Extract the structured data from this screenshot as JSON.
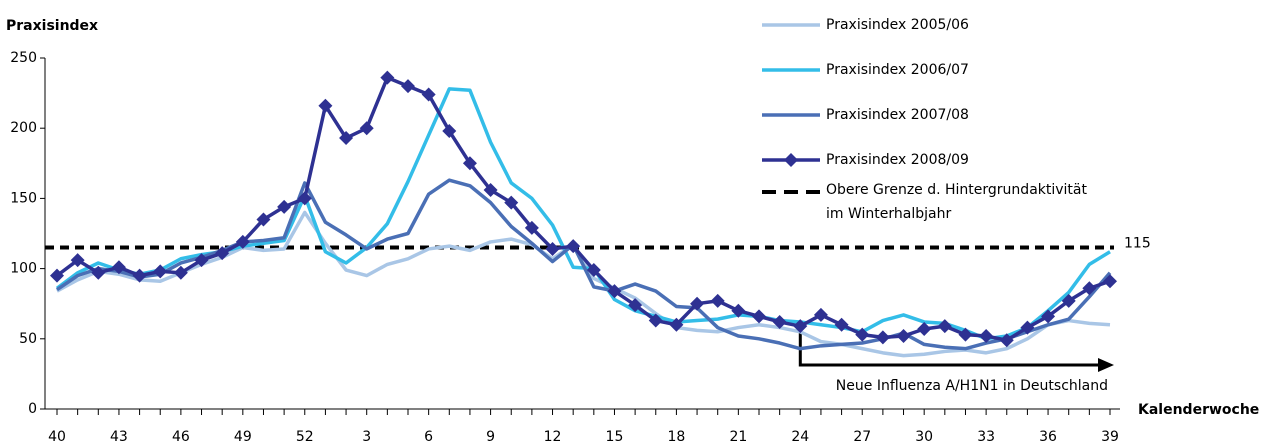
{
  "chart_data": {
    "type": "line",
    "y_label": "Praxisindex",
    "x_label": "Kalenderwoche",
    "categories": [
      "40",
      null,
      null,
      "43",
      null,
      null,
      "46",
      null,
      null,
      "49",
      null,
      null,
      "52",
      null,
      null,
      "3",
      null,
      null,
      "6",
      null,
      null,
      "9",
      null,
      null,
      "12",
      null,
      null,
      "15",
      null,
      null,
      "18",
      null,
      null,
      "21",
      null,
      null,
      "24",
      null,
      null,
      "27",
      null,
      null,
      "30",
      null,
      null,
      "33",
      null,
      null,
      "36",
      null,
      null,
      "39"
    ],
    "ylim": [
      0,
      250
    ],
    "yticks": [
      0,
      50,
      100,
      150,
      200,
      250
    ],
    "series": [
      {
        "name": "Praxisindex 2005/06",
        "color": "#a9c6e6",
        "values": [
          84,
          92,
          98,
          96,
          92,
          91,
          97,
          103,
          108,
          115,
          113,
          114,
          140,
          118,
          99,
          95,
          103,
          107,
          114,
          116,
          113,
          119,
          121,
          117,
          107,
          117,
          93,
          86,
          79,
          68,
          58,
          56,
          55,
          58,
          60,
          58,
          55,
          48,
          46,
          43,
          40,
          38,
          39,
          41,
          42,
          40,
          43,
          50,
          60,
          63,
          61,
          60
        ]
      },
      {
        "name": "Praxisindex 2006/07",
        "color": "#33bde8",
        "values": [
          86,
          97,
          104,
          99,
          96,
          99,
          107,
          110,
          112,
          116,
          118,
          120,
          152,
          112,
          104,
          115,
          132,
          162,
          195,
          228,
          227,
          190,
          161,
          150,
          131,
          101,
          100,
          78,
          70,
          66,
          62,
          63,
          64,
          67,
          66,
          63,
          62,
          60,
          58,
          55,
          63,
          67,
          62,
          61,
          56,
          50,
          52,
          58,
          70,
          83,
          103,
          112
        ]
      },
      {
        "name": "Praxisindex 2007/08",
        "color": "#4a6fb5",
        "values": [
          85,
          95,
          100,
          98,
          94,
          96,
          104,
          108,
          113,
          119,
          120,
          122,
          161,
          133,
          124,
          114,
          121,
          125,
          153,
          163,
          159,
          147,
          130,
          118,
          105,
          117,
          87,
          84,
          89,
          84,
          73,
          72,
          58,
          52,
          50,
          47,
          43,
          45,
          46,
          47,
          50,
          54,
          46,
          44,
          43,
          47,
          50,
          55,
          60,
          64,
          80,
          97
        ]
      },
      {
        "name": "Praxisindex 2008/09",
        "color": "#2e3192",
        "marker": "diamond",
        "values": [
          95,
          106,
          97,
          101,
          95,
          98,
          97,
          106,
          111,
          119,
          135,
          144,
          150,
          216,
          193,
          200,
          236,
          230,
          224,
          198,
          175,
          156,
          147,
          129,
          114,
          116,
          99,
          84,
          74,
          63,
          60,
          75,
          77,
          70,
          66,
          62,
          59,
          67,
          60,
          53,
          51,
          52,
          57,
          59,
          53,
          52,
          49,
          58,
          66,
          77,
          86,
          91
        ]
      }
    ],
    "threshold": {
      "value": 115,
      "label": "115",
      "legend": [
        "Obere Grenze d. Hintergrundaktivität",
        "im Winterhalbjahr"
      ],
      "color": "#000000"
    },
    "annotation": "Neue Influenza A/H1N1 in Deutschland"
  }
}
